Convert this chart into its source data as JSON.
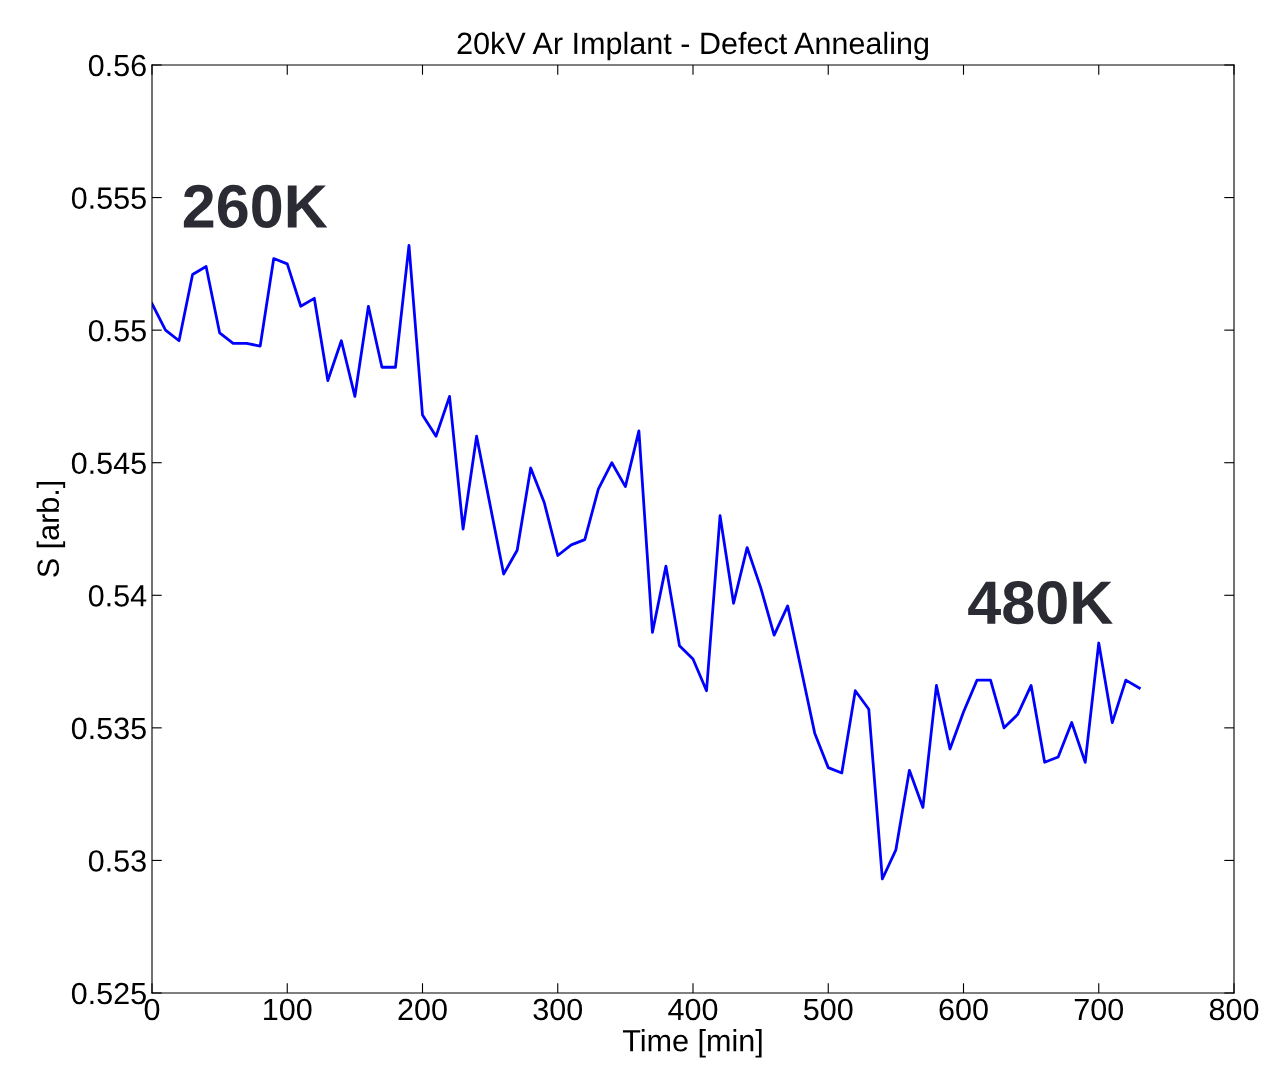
{
  "chart_data": {
    "type": "line",
    "title": "20kV Ar Implant - Defect Annealing",
    "xlabel": "Time [min]",
    "ylabel": "S [arb.]",
    "x": [
      0,
      10,
      20,
      30,
      40,
      50,
      60,
      70,
      80,
      90,
      100,
      110,
      120,
      130,
      140,
      150,
      160,
      170,
      180,
      190,
      200,
      210,
      220,
      230,
      240,
      250,
      260,
      270,
      280,
      290,
      300,
      310,
      320,
      330,
      340,
      350,
      360,
      370,
      380,
      390,
      400,
      410,
      420,
      430,
      440,
      450,
      460,
      470,
      480,
      490,
      500,
      510,
      520,
      530,
      540,
      550,
      560,
      570,
      580,
      590,
      600,
      610,
      620,
      630,
      640,
      650,
      660,
      670,
      680,
      690,
      700,
      710,
      720,
      730
    ],
    "series": [
      {
        "color": "#0000ff",
        "values": [
          0.551,
          0.55,
          0.5496,
          0.5521,
          0.5524,
          0.5499,
          0.5495,
          0.5495,
          0.5494,
          0.5527,
          0.5525,
          0.5509,
          0.5512,
          0.5481,
          0.5496,
          0.5475,
          0.5509,
          0.5486,
          0.5486,
          0.5532,
          0.5468,
          0.546,
          0.5475,
          0.5425,
          0.546,
          0.5434,
          0.5408,
          0.5417,
          0.5448,
          0.5435,
          0.5415,
          0.5419,
          0.5421,
          0.544,
          0.545,
          0.5441,
          0.5462,
          0.5386,
          0.5411,
          0.5381,
          0.5376,
          0.5364,
          0.543,
          0.5397,
          0.5418,
          0.5403,
          0.5385,
          0.5396,
          0.5372,
          0.5348,
          0.5335,
          0.5333,
          0.5364,
          0.5357,
          0.5293,
          0.5304,
          0.5334,
          0.532,
          0.5366,
          0.5342,
          0.5356,
          0.5368,
          0.5368,
          0.535,
          0.5355,
          0.5366,
          0.5337,
          0.5339,
          0.5352,
          0.5337,
          0.5382,
          0.5352,
          0.5368,
          0.5365
        ]
      }
    ],
    "annotations": [
      "260K",
      "480K"
    ],
    "xlim": [
      0,
      800
    ],
    "xticks": [
      0,
      100,
      200,
      300,
      400,
      500,
      600,
      700,
      800
    ],
    "ylim": [
      0.525,
      0.56
    ],
    "yticks": [
      0.525,
      0.53,
      0.535,
      0.54,
      0.545,
      0.55,
      0.555,
      0.56
    ],
    "grid": false,
    "legend": false,
    "marker": "none",
    "line_style": "solid"
  }
}
